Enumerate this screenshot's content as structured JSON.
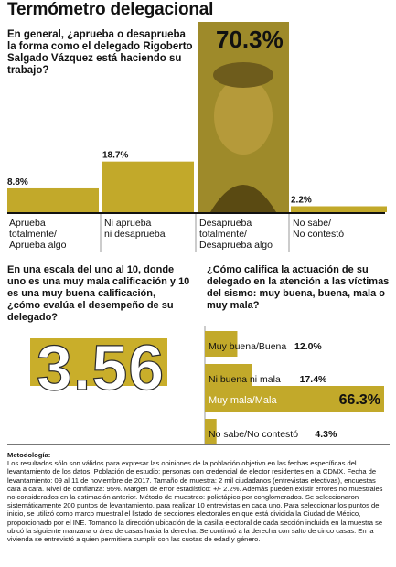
{
  "title": "Termómetro delegacional",
  "question1": "En general, ¿aprueba o desaprueba la forma como el delegado Rigoberto Salgado Vázquez está haciendo su trabajo?",
  "colors": {
    "bar": "#c2a92a",
    "bar_dark": "#6b5a10",
    "baseline": "#111111"
  },
  "chart_data": [
    {
      "type": "bar",
      "categories": [
        "Aprueba totalmente/ Aprueba algo",
        "Ni aprueba ni desaprueba",
        "Desaprueba totalmente/ Desaprueba algo",
        "No sabe/ No contestó"
      ],
      "category_lines": [
        [
          "Aprueba",
          "totalmente/",
          "Aprueba algo"
        ],
        [
          "Ni aprueba",
          "ni desaprueba"
        ],
        [
          "Desaprueba",
          "totalmente/",
          "Desaprueba algo"
        ],
        [
          "No sabe/",
          "No contestó"
        ]
      ],
      "values": [
        8.8,
        18.7,
        70.3,
        2.2
      ],
      "value_labels": [
        "8.8%",
        "18.7%",
        "70.3%",
        "2.2%"
      ],
      "unit": "%"
    },
    {
      "type": "bar",
      "orientation": "horizontal",
      "categories": [
        "Muy buena/Buena",
        "Ni buena ni mala",
        "Muy mala/Mala",
        "No sabe/No contestó"
      ],
      "values": [
        12.0,
        17.4,
        66.3,
        4.3
      ],
      "value_labels": [
        "12.0%",
        "17.4%",
        "66.3%",
        "4.3%"
      ],
      "unit": "%"
    }
  ],
  "question2": "En una escala del uno al 10, donde uno es una muy mala calificación y 10 es una muy buena calificación, ¿cómo evalúa el desempeño de su delegado?",
  "score": "3.56",
  "question3": "¿Cómo califica la actuación de su delegado en la atención a las víctimas del sismo: muy buena, buena, mala o muy mala?",
  "methodology_title": "Metodología:",
  "methodology_text": "Los resultados sólo son válidos para expresar las opiniones de la población objetivo en las fechas específicas del levantamiento de los datos. Población de estudio: personas con credencial de elector residentes en la CDMX. Fecha de levantamiento: 09 al 11 de noviembre de 2017. Tamaño de muestra: 2 mil ciudadanos (entrevistas efectivas), encuestas cara a cara. Nivel de confianza: 95%. Margen de error estadístico: +/- 2.2%. Además pueden existir errores no muestrales no considerados en la estimación anterior. Método de muestreo: polietápico por conglomerados. Se seleccionaron sistemáticamente 200 puntos de levantamiento, para realizar 10 entrevistas en cada uno. Para seleccionar los puntos de inicio, se utilizó como marco muestral el listado de secciones electorales en que está dividida la Ciudad de México, proporcionado por el INE. Tomando la dirección ubicación de la casilla electoral de cada sección incluida en la muestra se ubicó la siguiente manzana o área de casas hacia la derecha. Se continuó a la derecha con salto de cinco casas. En la vivienda se entrevistó a quien permitiera cumplir con las cuotas de edad y género."
}
